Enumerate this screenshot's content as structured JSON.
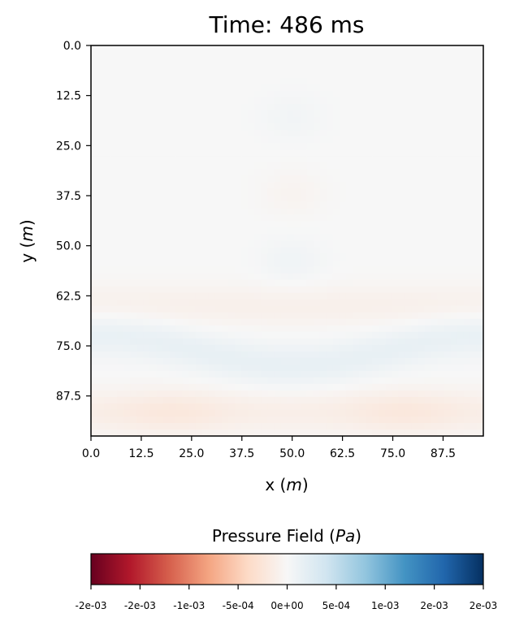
{
  "chart_data": {
    "type": "heatmap",
    "title": "Time:  486 ms",
    "xlabel": "x (m)",
    "ylabel": "y (m)",
    "xlim": [
      0,
      97.5
    ],
    "ylim": [
      97.5,
      0
    ],
    "x_ticks": [
      "0.0",
      "12.5",
      "25.0",
      "37.5",
      "50.0",
      "62.5",
      "75.0",
      "87.5"
    ],
    "y_ticks": [
      "0.0",
      "12.5",
      "25.0",
      "37.5",
      "50.0",
      "62.5",
      "75.0",
      "87.5"
    ],
    "colorbar": {
      "label": "Pressure Field (Pa)",
      "colormap": "RdBu",
      "range": [
        -0.002,
        0.002
      ],
      "tick_labels": [
        "-2e-03",
        "-2e-03",
        "-1e-03",
        "-5e-04",
        "0e+00",
        "5e-04",
        "1e-03",
        "2e-03",
        "2e-03"
      ]
    },
    "field_features": [
      {
        "kind": "band",
        "y": 91.5,
        "sign": "positive",
        "amplitude": 0.00022,
        "note": "bottom band, strongest near x=20 and x=78"
      },
      {
        "kind": "band",
        "y": 78,
        "sign": "negative",
        "amplitude": 0.00016,
        "note": "blue band, arches upward near x=50"
      },
      {
        "kind": "band",
        "y": 65,
        "sign": "positive",
        "amplitude": 0.0001
      },
      {
        "kind": "blob",
        "x": 50,
        "y": 54,
        "sign": "negative",
        "amplitude": 8e-05
      },
      {
        "kind": "blob",
        "x": 50,
        "y": 37,
        "sign": "positive",
        "amplitude": 6e-05
      },
      {
        "kind": "blob",
        "x": 50,
        "y": 18,
        "sign": "negative",
        "amplitude": 6e-05
      }
    ],
    "grid": false
  }
}
